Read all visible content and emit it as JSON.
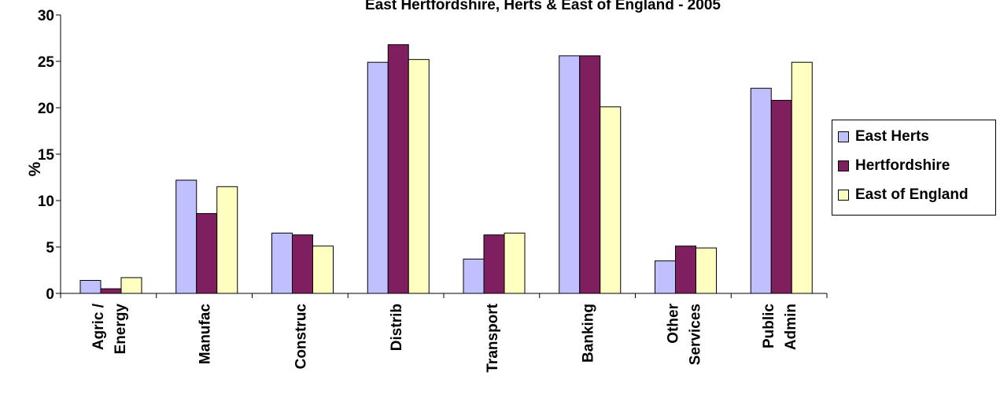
{
  "chart_data": {
    "type": "bar",
    "title": "East Hertfordshire, Herts & East of England - 2005",
    "ylabel": "%",
    "xlabel": "",
    "ylim": [
      0,
      30
    ],
    "yticks": [
      0,
      5,
      10,
      15,
      20,
      25,
      30
    ],
    "grid": false,
    "legend_position": "right",
    "categories": [
      [
        "Agric /",
        "Energy"
      ],
      [
        "Manufac"
      ],
      [
        "Construc"
      ],
      [
        "Distrib"
      ],
      [
        "Transport"
      ],
      [
        "Banking"
      ],
      [
        "Other",
        "Services"
      ],
      [
        "Public",
        "Admin"
      ]
    ],
    "series": [
      {
        "name": "East Herts",
        "color": "#c0c0ff",
        "values": [
          1.4,
          12.2,
          6.5,
          24.9,
          3.7,
          25.6,
          3.5,
          22.1
        ]
      },
      {
        "name": "Hertfordshire",
        "color": "#7f1f5f",
        "values": [
          0.5,
          8.6,
          6.3,
          26.8,
          6.3,
          25.6,
          5.1,
          20.8
        ]
      },
      {
        "name": "East of England",
        "color": "#ffffc0",
        "values": [
          1.7,
          11.5,
          5.1,
          25.2,
          6.5,
          20.1,
          4.9,
          24.9
        ]
      }
    ]
  }
}
